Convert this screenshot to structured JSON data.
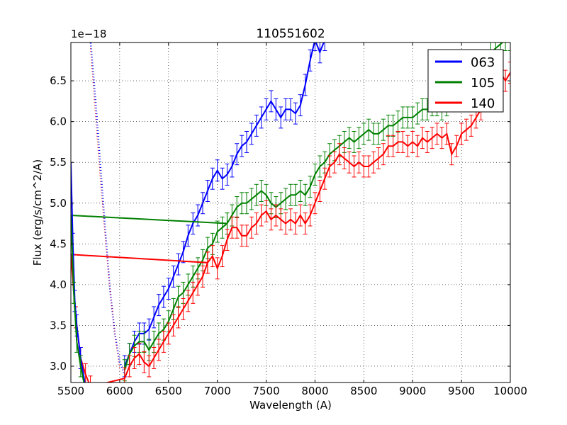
{
  "chart_data": {
    "type": "line",
    "title": "110551602",
    "xlabel": "Wavelength (A)",
    "ylabel": "Flux (erg/s/cm^2/A)",
    "offset_text": "1e−18",
    "xlim": [
      5500,
      10000
    ],
    "ylim": [
      2.8,
      6.97
    ],
    "xticks": [
      5500,
      6000,
      6500,
      7000,
      7500,
      8000,
      8500,
      9000,
      9500,
      10000
    ],
    "yticks": [
      3.0,
      3.5,
      4.0,
      4.5,
      5.0,
      5.5,
      6.0,
      6.5
    ],
    "xtick_labels": [
      "5500",
      "6000",
      "6500",
      "7000",
      "7500",
      "8000",
      "8500",
      "9000",
      "9500",
      "10000"
    ],
    "ytick_labels": [
      "3.0",
      "3.5",
      "4.0",
      "4.5",
      "5.0",
      "5.5",
      "6.0",
      "6.5"
    ],
    "grid": true,
    "legend_position": "top-right",
    "series": [
      {
        "name": "063",
        "color": "#0000ff",
        "x": [
          6050,
          6100,
          6150,
          6200,
          6250,
          6300,
          6350,
          6400,
          6450,
          6500,
          6550,
          6600,
          6650,
          6700,
          6750,
          6800,
          6850,
          6900,
          6950,
          7000,
          7050,
          7100,
          7150,
          7200,
          7250,
          7300,
          7350,
          7400,
          7450,
          7500,
          7550,
          7600,
          7650,
          7700,
          7750,
          7800,
          7850,
          7900,
          7950,
          8000,
          8050,
          8100
        ],
        "y": [
          3.0,
          3.15,
          3.3,
          3.4,
          3.4,
          3.45,
          3.6,
          3.75,
          3.85,
          3.95,
          4.1,
          4.25,
          4.4,
          4.6,
          4.75,
          4.85,
          5.0,
          5.15,
          5.3,
          5.4,
          5.3,
          5.35,
          5.45,
          5.6,
          5.7,
          5.75,
          5.85,
          5.95,
          6.05,
          6.15,
          6.25,
          6.15,
          6.05,
          6.15,
          6.15,
          6.1,
          6.2,
          6.45,
          6.75,
          7.0,
          6.85,
          7.0
        ],
        "flat_segment": [
          [
            5500,
            5.5
          ]
        ],
        "dotted_x": [
          5700,
          5750,
          5800,
          5850,
          5900,
          5950,
          6000,
          6050
        ],
        "dotted_y": [
          7.0,
          6.3,
          5.5,
          4.7,
          3.95,
          3.4,
          3.05,
          2.9
        ]
      },
      {
        "name": "105",
        "color": "#008000",
        "x": [
          5500,
          7100,
          7150,
          7200,
          7250,
          7300,
          7350,
          7400,
          7450,
          7500,
          7550,
          7600,
          7650,
          7700,
          7750,
          7800,
          7850,
          7900,
          7950,
          8000,
          8050,
          8100,
          8150,
          8200,
          8250,
          8300,
          8350,
          8400,
          8450,
          8500,
          8550,
          8600,
          8650,
          8700,
          8750,
          8800,
          8850,
          8900,
          8950,
          9000,
          9050,
          9100,
          9150,
          9200,
          9250,
          9300,
          9350,
          9400,
          9450,
          9500,
          9550,
          9600,
          9650,
          9700,
          9750,
          9800,
          9850,
          9900,
          9950,
          10000
        ],
        "y": [
          4.85,
          4.75,
          4.85,
          4.95,
          5.0,
          5.0,
          5.05,
          5.1,
          5.15,
          5.1,
          5.0,
          4.95,
          5.0,
          5.05,
          5.1,
          5.1,
          5.15,
          5.1,
          5.2,
          5.35,
          5.45,
          5.5,
          5.6,
          5.65,
          5.7,
          5.75,
          5.8,
          5.75,
          5.8,
          5.85,
          5.9,
          5.85,
          5.85,
          5.9,
          5.95,
          5.95,
          6.0,
          6.05,
          6.05,
          6.05,
          6.1,
          6.15,
          6.15,
          6.2,
          6.2,
          6.15,
          6.2,
          6.25,
          6.3,
          6.3,
          6.35,
          6.4,
          6.5,
          6.6,
          6.75,
          6.85,
          6.9,
          6.95,
          7.0,
          7.0
        ],
        "lower_x": [
          6050,
          6100,
          6150,
          6200,
          6250,
          6300,
          6350,
          6400,
          6450,
          6500,
          6550,
          6600,
          6650,
          6700,
          6750,
          6800,
          6850,
          6900,
          6950,
          7000,
          7050,
          7100
        ],
        "lower_y": [
          2.95,
          3.15,
          3.25,
          3.3,
          3.3,
          3.2,
          3.3,
          3.4,
          3.45,
          3.55,
          3.7,
          3.85,
          3.9,
          4.0,
          4.1,
          4.2,
          4.3,
          4.45,
          4.5,
          4.65,
          4.7,
          4.75
        ]
      },
      {
        "name": "140",
        "color": "#ff0000",
        "x": [
          5500,
          6900,
          6950,
          7000,
          7050,
          7100,
          7150,
          7200,
          7250,
          7300,
          7350,
          7400,
          7450,
          7500,
          7550,
          7600,
          7650,
          7700,
          7750,
          7800,
          7850,
          7900,
          7950,
          8000,
          8050,
          8100,
          8150,
          8200,
          8250,
          8300,
          8350,
          8400,
          8450,
          8500,
          8550,
          8600,
          8650,
          8700,
          8750,
          8800,
          8850,
          8900,
          8950,
          9000,
          9050,
          9100,
          9150,
          9200,
          9250,
          9300,
          9350,
          9400,
          9450,
          9500,
          9550,
          9600,
          9650,
          9700,
          9750,
          9800,
          9850,
          9900,
          9950,
          10000
        ],
        "y": [
          4.37,
          4.27,
          4.35,
          4.2,
          4.35,
          4.55,
          4.7,
          4.7,
          4.6,
          4.6,
          4.7,
          4.75,
          4.85,
          4.9,
          4.8,
          4.85,
          4.8,
          4.75,
          4.8,
          4.75,
          4.85,
          4.75,
          4.85,
          5.0,
          5.15,
          5.3,
          5.45,
          5.5,
          5.6,
          5.55,
          5.5,
          5.45,
          5.5,
          5.45,
          5.45,
          5.5,
          5.55,
          5.6,
          5.7,
          5.7,
          5.75,
          5.75,
          5.7,
          5.75,
          5.7,
          5.8,
          5.75,
          5.8,
          5.85,
          5.8,
          5.85,
          5.6,
          5.7,
          5.85,
          5.9,
          5.95,
          6.05,
          6.15,
          6.3,
          6.45,
          6.55,
          6.6,
          6.5,
          6.6
        ],
        "lower_x": [
          5500,
          5550,
          5600,
          5650,
          5700,
          6050,
          6100,
          6150,
          6200,
          6250,
          6300,
          6350,
          6400,
          6450,
          6500,
          6550,
          6600,
          6650,
          6700,
          6750,
          6800,
          6850,
          6900
        ],
        "lower_y": [
          4.37,
          3.6,
          3.1,
          2.9,
          2.75,
          2.85,
          3.0,
          3.1,
          3.15,
          3.05,
          3.0,
          3.1,
          3.2,
          3.3,
          3.4,
          3.5,
          3.6,
          3.7,
          3.8,
          3.9,
          4.0,
          4.1,
          4.27
        ],
        "dotted_x": [
          5700,
          5750,
          5800,
          5850,
          5900,
          5950,
          6000
        ],
        "dotted_y": [
          6.9,
          6.1,
          5.3,
          4.6,
          3.95,
          3.4,
          2.95
        ]
      }
    ]
  }
}
